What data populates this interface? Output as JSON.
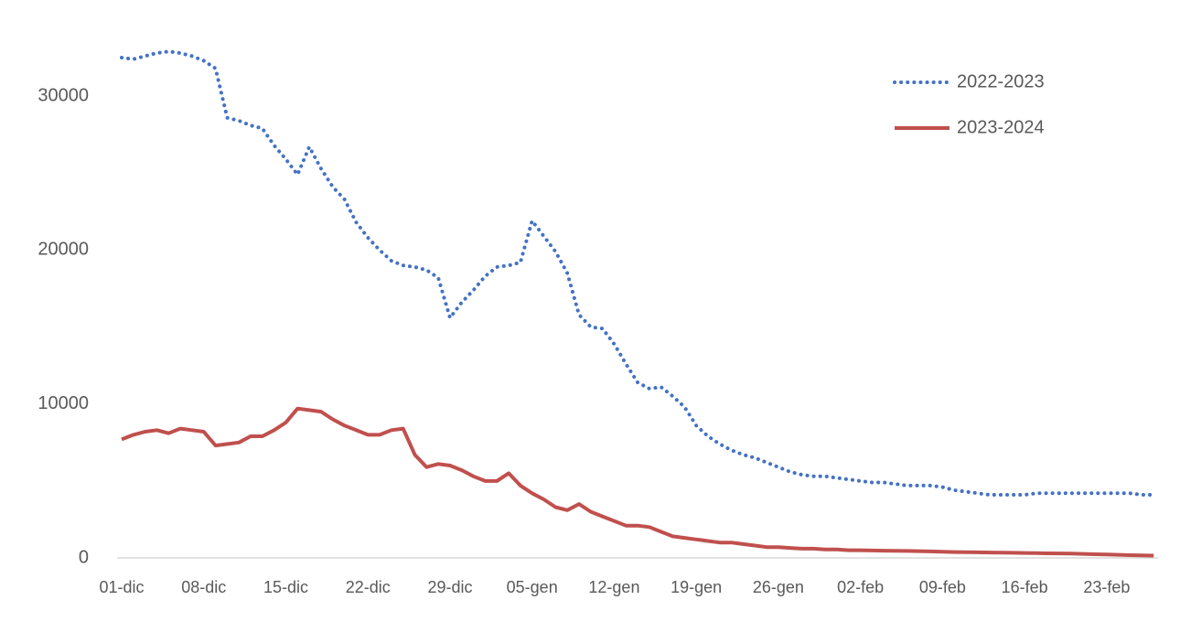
{
  "chart_data": {
    "type": "line",
    "categories": [
      "01-dic",
      null,
      null,
      null,
      null,
      null,
      null,
      "08-dic",
      null,
      null,
      null,
      null,
      null,
      null,
      "15-dic",
      null,
      null,
      null,
      null,
      null,
      null,
      "22-dic",
      null,
      null,
      null,
      null,
      null,
      null,
      "29-dic",
      null,
      null,
      null,
      null,
      null,
      null,
      "05-gen",
      null,
      null,
      null,
      null,
      null,
      null,
      "12-gen",
      null,
      null,
      null,
      null,
      null,
      null,
      "19-gen",
      null,
      null,
      null,
      null,
      null,
      null,
      "26-gen",
      null,
      null,
      null,
      null,
      null,
      null,
      "02-feb",
      null,
      null,
      null,
      null,
      null,
      null,
      "09-feb",
      null,
      null,
      null,
      null,
      null,
      null,
      "16-feb",
      null,
      null,
      null,
      null,
      null,
      null,
      "23-feb",
      null,
      null,
      null,
      null
    ],
    "series": [
      {
        "name": "2022-2023",
        "color": "#4472c4",
        "dash": "dotted",
        "values": [
          32500,
          32400,
          32600,
          32800,
          32900,
          32800,
          32600,
          32300,
          31800,
          28600,
          28400,
          28100,
          27900,
          26800,
          25900,
          24900,
          26700,
          25300,
          24100,
          23300,
          21800,
          20800,
          20000,
          19300,
          19000,
          18900,
          18700,
          18200,
          15600,
          16600,
          17400,
          18300,
          18900,
          19000,
          19200,
          21900,
          20900,
          19900,
          18500,
          15800,
          15000,
          14900,
          13900,
          12600,
          11400,
          11000,
          11100,
          10500,
          9800,
          8600,
          7900,
          7400,
          7000,
          6700,
          6500,
          6200,
          5900,
          5600,
          5400,
          5300,
          5300,
          5200,
          5100,
          5000,
          4900,
          4900,
          4800,
          4700,
          4700,
          4700,
          4600,
          4400,
          4300,
          4200,
          4100,
          4100,
          4100,
          4100,
          4200,
          4200,
          4200,
          4200,
          4200,
          4200,
          4200,
          4200,
          4200,
          4100,
          4100
        ]
      },
      {
        "name": "2023-2024",
        "color": "#c0504d",
        "dash": "solid",
        "values": [
          7700,
          8000,
          8200,
          8300,
          8100,
          8400,
          8300,
          8200,
          7300,
          7400,
          7500,
          7900,
          7900,
          8300,
          8800,
          9700,
          9600,
          9500,
          9000,
          8600,
          8300,
          8000,
          8000,
          8300,
          8400,
          6700,
          5900,
          6100,
          6000,
          5700,
          5300,
          5000,
          5000,
          5500,
          4700,
          4200,
          3800,
          3300,
          3100,
          3500,
          3000,
          2700,
          2400,
          2100,
          2100,
          2000,
          1700,
          1400,
          1300,
          1200,
          1100,
          1000,
          1000,
          900,
          800,
          700,
          700,
          650,
          600,
          600,
          550,
          550,
          500,
          500,
          480,
          470,
          460,
          450,
          440,
          420,
          400,
          380,
          370,
          360,
          350,
          340,
          330,
          320,
          310,
          300,
          290,
          280,
          260,
          240,
          220,
          200,
          180,
          160,
          150
        ]
      }
    ],
    "ylim": [
      0,
      35000
    ],
    "yticks": [
      0,
      10000,
      20000,
      30000
    ],
    "grid": false,
    "legend": "top-right"
  }
}
